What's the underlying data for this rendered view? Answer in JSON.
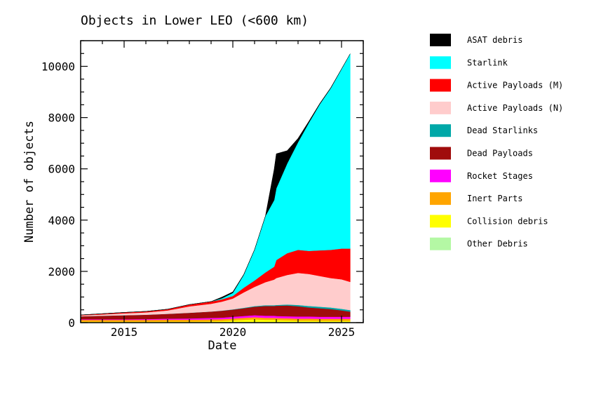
{
  "chart_data": {
    "type": "area",
    "stacked": true,
    "title": "Objects in Lower LEO (<600 km)",
    "xlabel": "Date",
    "ylabel": "Number of objects",
    "xlim": [
      2013.0,
      2026.0
    ],
    "ylim": [
      0,
      11000
    ],
    "xticks": [
      2015,
      2020,
      2025
    ],
    "xtick_labels": [
      "2015",
      "2020",
      "2025"
    ],
    "yticks": [
      0,
      2000,
      4000,
      6000,
      8000,
      10000
    ],
    "ytick_labels": [
      "0",
      "2000",
      "4000",
      "6000",
      "8000",
      "10000"
    ],
    "legend_position": "right, outside plot",
    "grid": false,
    "x": [
      2013.0,
      2014.0,
      2015.0,
      2016.0,
      2017.0,
      2018.0,
      2019.0,
      2019.5,
      2020.0,
      2020.5,
      2021.0,
      2021.5,
      2021.9,
      2022.0,
      2022.5,
      2023.0,
      2023.5,
      2024.0,
      2024.5,
      2025.0,
      2025.4
    ],
    "series": [
      {
        "name": "Other Debris",
        "color": "#b4f8a4",
        "values": [
          20,
          20,
          20,
          20,
          25,
          25,
          25,
          25,
          30,
          30,
          30,
          30,
          30,
          30,
          30,
          30,
          30,
          30,
          30,
          30,
          30
        ]
      },
      {
        "name": "Collision debris",
        "color": "#ffff00",
        "values": [
          20,
          20,
          20,
          20,
          20,
          20,
          30,
          40,
          60,
          80,
          100,
          80,
          80,
          70,
          60,
          50,
          50,
          40,
          40,
          40,
          40
        ]
      },
      {
        "name": "Inert Parts",
        "color": "#ffa500",
        "values": [
          70,
          70,
          70,
          70,
          70,
          70,
          70,
          70,
          70,
          80,
          80,
          80,
          80,
          80,
          80,
          80,
          80,
          80,
          80,
          80,
          80
        ]
      },
      {
        "name": "Rocket Stages",
        "color": "#ff00ff",
        "values": [
          20,
          20,
          20,
          30,
          40,
          50,
          60,
          60,
          70,
          70,
          80,
          80,
          80,
          80,
          80,
          80,
          80,
          80,
          80,
          80,
          80
        ]
      },
      {
        "name": "Dead Payloads",
        "color": "#a00c0c",
        "values": [
          120,
          140,
          160,
          170,
          190,
          220,
          250,
          270,
          280,
          300,
          330,
          380,
          380,
          400,
          420,
          400,
          350,
          330,
          300,
          250,
          200
        ]
      },
      {
        "name": "Dead Starlinks",
        "color": "#00a8a8",
        "values": [
          0,
          0,
          0,
          0,
          0,
          0,
          0,
          5,
          10,
          20,
          25,
          30,
          30,
          30,
          40,
          50,
          60,
          60,
          60,
          60,
          60
        ]
      },
      {
        "name": "Active Payloads (N)",
        "color": "#ffcccc",
        "values": [
          30,
          50,
          70,
          90,
          130,
          250,
          300,
          350,
          420,
          600,
          750,
          900,
          1000,
          1050,
          1150,
          1250,
          1250,
          1200,
          1150,
          1150,
          1100
        ]
      },
      {
        "name": "Active Payloads (M)",
        "color": "#ff0000",
        "values": [
          20,
          30,
          40,
          40,
          50,
          70,
          90,
          90,
          100,
          180,
          250,
          380,
          500,
          700,
          850,
          900,
          900,
          1000,
          1100,
          1200,
          1300
        ]
      },
      {
        "name": "Starlink",
        "color": "#00ffff",
        "values": [
          0,
          0,
          0,
          0,
          0,
          0,
          0,
          40,
          120,
          500,
          1200,
          2200,
          2600,
          2800,
          3500,
          4200,
          5000,
          5700,
          6300,
          7000,
          7600
        ]
      },
      {
        "name": "ASAT debris",
        "color": "#000000",
        "values": [
          0,
          0,
          0,
          0,
          0,
          0,
          0,
          50,
          40,
          20,
          10,
          5,
          1200,
          1350,
          500,
          150,
          60,
          30,
          20,
          10,
          0
        ]
      }
    ]
  }
}
